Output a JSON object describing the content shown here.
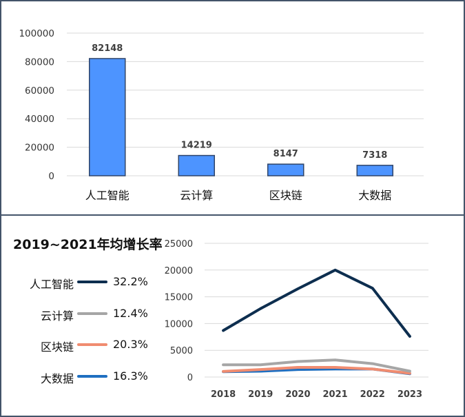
{
  "chart_data": [
    {
      "type": "bar",
      "categories": [
        "人工智能",
        "云计算",
        "区块链",
        "大数据"
      ],
      "values": [
        82148,
        14219,
        8147,
        7318
      ],
      "ylim": [
        0,
        100000
      ],
      "yticks": [
        0,
        20000,
        40000,
        60000,
        80000,
        100000
      ],
      "grid": true,
      "color": "#4d94ff"
    },
    {
      "type": "line",
      "title": "2019~2021年均增长率",
      "x": [
        2018,
        2019,
        2020,
        2021,
        2022,
        2023
      ],
      "ylim": [
        0,
        25000
      ],
      "yticks": [
        0,
        5000,
        10000,
        15000,
        20000,
        25000
      ],
      "grid": true,
      "legend_placement": "left",
      "series": [
        {
          "name": "人工智能",
          "growth": "32.2%",
          "color": "#0d2e4f",
          "values": [
            8700,
            12800,
            16500,
            20000,
            16600,
            7600
          ]
        },
        {
          "name": "云计算",
          "growth": "12.4%",
          "color": "#a6a6a6",
          "values": [
            2300,
            2300,
            2900,
            3200,
            2500,
            1100
          ]
        },
        {
          "name": "区块链",
          "growth": "20.3%",
          "color": "#f08c70",
          "values": [
            1050,
            1400,
            1800,
            1800,
            1500,
            700
          ]
        },
        {
          "name": "大数据",
          "growth": "16.3%",
          "color": "#1f6fc1",
          "values": [
            1000,
            1100,
            1400,
            1500,
            1500,
            600
          ]
        }
      ]
    }
  ]
}
